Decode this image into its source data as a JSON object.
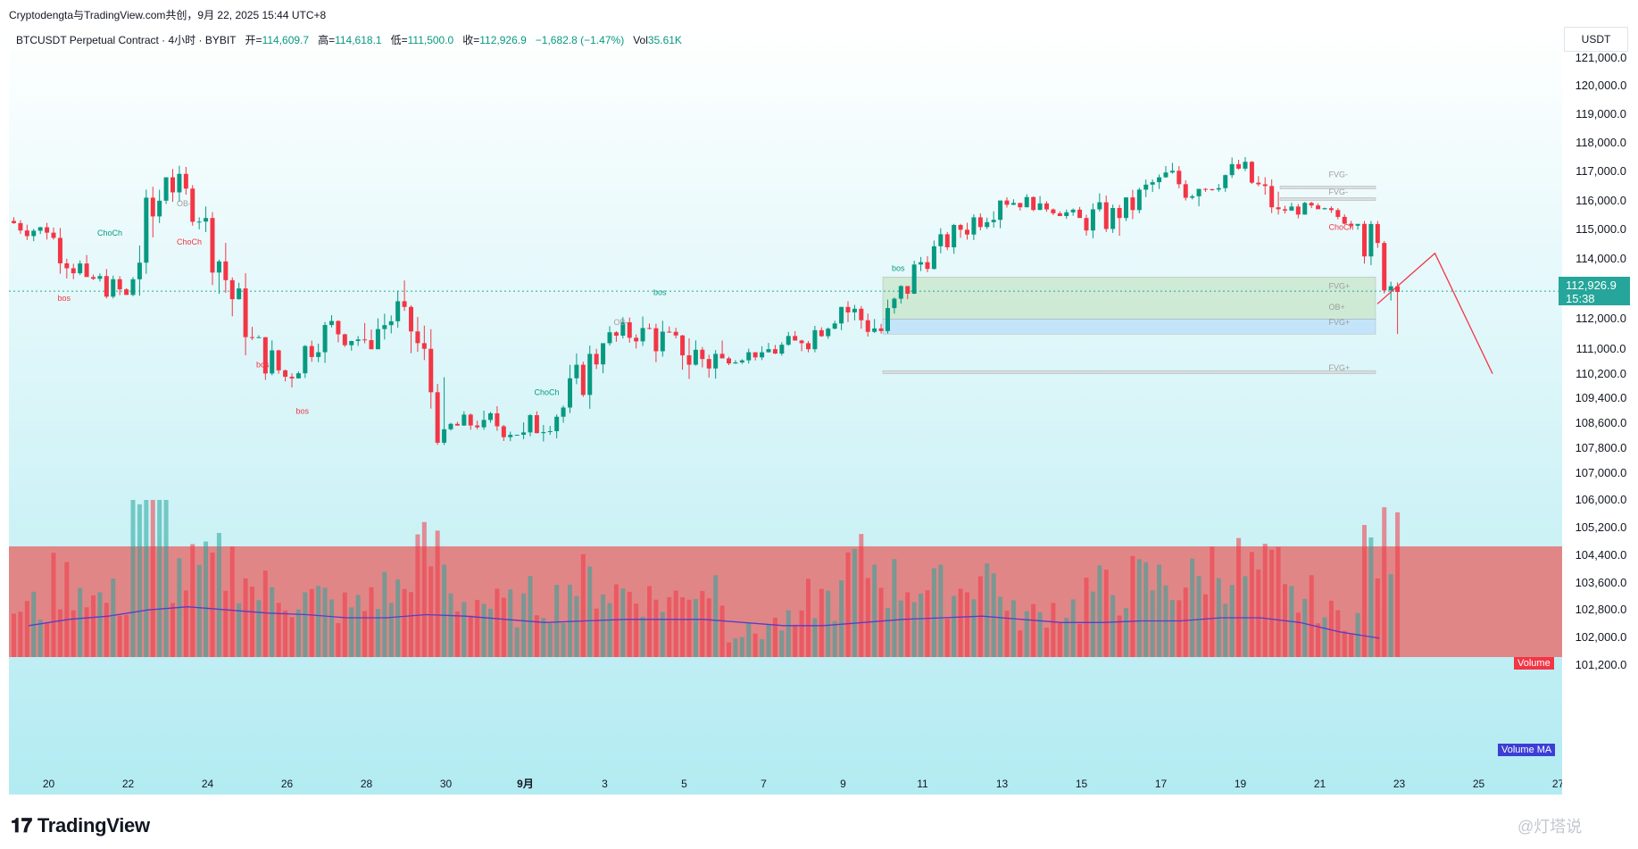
{
  "header": {
    "attribution": "Cryptodengta与TradingView.com共创，9月 22, 2025 15:44 UTC+8"
  },
  "legend": {
    "symbol": "BTCUSDT Perpetual Contract · 4小时 · BYBIT",
    "open_label": "开=",
    "open": "114,609.7",
    "high_label": "高=",
    "high": "114,618.1",
    "low_label": "低=",
    "low": "111,500.0",
    "close_label": "收=",
    "close": "112,926.9",
    "change": "−1,682.8 (−1.47%)",
    "vol_label": "Vol",
    "vol": "35.61K"
  },
  "price_axis": {
    "currency": "USDT",
    "labels": [
      "121,000.0",
      "120,000.0",
      "119,000.0",
      "118,000.0",
      "117,000.0",
      "116,000.0",
      "115,000.0",
      "114,000.0",
      "112,000.0",
      "111,000.0",
      "110,200.0",
      "109,400.0",
      "108,600.0",
      "107,800.0",
      "107,000.0",
      "106,000.0",
      "105,200.0",
      "104,400.0",
      "103,600.0",
      "102,800.0",
      "102,000.0",
      "101,200.0"
    ],
    "last_price": "112,926.9",
    "countdown": "15:38"
  },
  "time_axis": {
    "labels": [
      "20",
      "22",
      "24",
      "26",
      "28",
      "30",
      "9月",
      "3",
      "5",
      "7",
      "9",
      "11",
      "13",
      "15",
      "17",
      "19",
      "21",
      "23",
      "25",
      "27"
    ]
  },
  "indicators": {
    "volume_tag": "Volume",
    "volume_ma_tag": "Volume MA"
  },
  "annotations": {
    "choch_1": "ChoCh",
    "bos_1": "bos",
    "choch_2": "ChoCh",
    "bos_2": "bos",
    "bos_3": "bos",
    "choch_3": "ChoCh",
    "bos_4": "bos",
    "bos_5": "bos",
    "choch_4": "ChoCh",
    "ob_1": "OB-",
    "ob_2": "OB-",
    "ob_3": "OB+",
    "fvg_1": "FVG-",
    "fvg_2": "FVG-",
    "fvg_3": "FVG+",
    "fvg_4": "FVG+",
    "fvg_5": "FVG+"
  },
  "colors": {
    "up": "#089981",
    "down": "#f23645",
    "bg_top": "#ffffff",
    "bg_bottom": "#b2ebf2",
    "volume_zone": "#e57373",
    "ma_line": "#5b3cc4",
    "ob_green": "#c8e6c9",
    "ob_blue": "#bbdefb",
    "ob_gray": "#d6d6d6"
  },
  "branding": {
    "logo": "TradingView",
    "watermark": "@灯塔说"
  },
  "chart_data": {
    "type": "candlestick",
    "symbol": "BTCUSDT Perpetual Contract",
    "interval": "4h",
    "y_range": [
      101000,
      121400
    ],
    "scale": "log",
    "x_range": [
      "2025-08-19",
      "2025-09-27"
    ],
    "current_price": 112926.9,
    "key_levels": [
      {
        "label": "OB+",
        "top": 113400,
        "bottom": 112000
      },
      {
        "label": "FVG+",
        "top": 112000,
        "bottom": 111500
      },
      {
        "label": "FVG+",
        "top": 110300,
        "bottom": 110200
      },
      {
        "label": "FVG-",
        "top": 116500,
        "bottom": 116400
      },
      {
        "label": "FVG-",
        "top": 116100,
        "bottom": 116000
      }
    ],
    "projection": [
      {
        "date": "2025-09-22",
        "price": 112500
      },
      {
        "date": "2025-09-23",
        "price": 114200
      },
      {
        "date": "2025-09-24",
        "price": 110200
      }
    ],
    "candles_daily_approx": [
      {
        "date": "2025-08-19",
        "o": 115300,
        "h": 115800,
        "l": 114300,
        "c": 114900
      },
      {
        "date": "2025-08-20",
        "o": 114900,
        "h": 115200,
        "l": 112800,
        "c": 113400
      },
      {
        "date": "2025-08-21",
        "o": 113400,
        "h": 114100,
        "l": 112400,
        "c": 112800
      },
      {
        "date": "2025-08-22",
        "o": 112800,
        "h": 117400,
        "l": 111700,
        "c": 116800
      },
      {
        "date": "2025-08-23",
        "o": 116800,
        "h": 117200,
        "l": 114700,
        "c": 115400
      },
      {
        "date": "2025-08-24",
        "o": 115400,
        "h": 115600,
        "l": 110800,
        "c": 111400
      },
      {
        "date": "2025-08-25",
        "o": 111400,
        "h": 111900,
        "l": 109300,
        "c": 110100
      },
      {
        "date": "2025-08-26",
        "o": 110100,
        "h": 111900,
        "l": 109400,
        "c": 111800
      },
      {
        "date": "2025-08-27",
        "o": 111800,
        "h": 112700,
        "l": 110700,
        "c": 111300
      },
      {
        "date": "2025-08-28",
        "o": 111300,
        "h": 113600,
        "l": 111000,
        "c": 112400
      },
      {
        "date": "2025-08-29",
        "o": 112400,
        "h": 112800,
        "l": 107900,
        "c": 108400
      },
      {
        "date": "2025-08-30",
        "o": 108400,
        "h": 109000,
        "l": 107600,
        "c": 108700
      },
      {
        "date": "2025-08-31",
        "o": 108700,
        "h": 109600,
        "l": 107900,
        "c": 108300
      },
      {
        "date": "2025-09-01",
        "o": 108300,
        "h": 109400,
        "l": 107300,
        "c": 109100
      },
      {
        "date": "2025-09-02",
        "o": 109100,
        "h": 111700,
        "l": 108600,
        "c": 111200
      },
      {
        "date": "2025-09-03",
        "o": 111200,
        "h": 112400,
        "l": 110500,
        "c": 111700
      },
      {
        "date": "2025-09-04",
        "o": 111700,
        "h": 112000,
        "l": 109400,
        "c": 110800
      },
      {
        "date": "2025-09-05",
        "o": 110800,
        "h": 113300,
        "l": 109500,
        "c": 110700
      },
      {
        "date": "2025-09-06",
        "o": 110700,
        "h": 111100,
        "l": 110300,
        "c": 110900
      },
      {
        "date": "2025-09-07",
        "o": 110900,
        "h": 111600,
        "l": 110100,
        "c": 111200
      },
      {
        "date": "2025-09-08",
        "o": 111200,
        "h": 112700,
        "l": 110900,
        "c": 112400
      },
      {
        "date": "2025-09-09",
        "o": 112400,
        "h": 113200,
        "l": 110800,
        "c": 111600
      },
      {
        "date": "2025-09-10",
        "o": 111600,
        "h": 114100,
        "l": 111400,
        "c": 113900
      },
      {
        "date": "2025-09-11",
        "o": 113900,
        "h": 115200,
        "l": 113500,
        "c": 115000
      },
      {
        "date": "2025-09-12",
        "o": 115000,
        "h": 116600,
        "l": 114600,
        "c": 116000
      },
      {
        "date": "2025-09-13",
        "o": 116000,
        "h": 116300,
        "l": 115300,
        "c": 115900
      },
      {
        "date": "2025-09-14",
        "o": 115900,
        "h": 116100,
        "l": 115200,
        "c": 115400
      },
      {
        "date": "2025-09-15",
        "o": 115400,
        "h": 116700,
        "l": 114400,
        "c": 115400
      },
      {
        "date": "2025-09-16",
        "o": 115400,
        "h": 116900,
        "l": 114800,
        "c": 116800
      },
      {
        "date": "2025-09-17",
        "o": 116800,
        "h": 117300,
        "l": 114800,
        "c": 116400
      },
      {
        "date": "2025-09-18",
        "o": 116400,
        "h": 117900,
        "l": 116300,
        "c": 117100
      },
      {
        "date": "2025-09-19",
        "o": 117100,
        "h": 117500,
        "l": 115200,
        "c": 115700
      },
      {
        "date": "2025-09-20",
        "o": 115700,
        "h": 116200,
        "l": 115300,
        "c": 115700
      },
      {
        "date": "2025-09-21",
        "o": 115700,
        "h": 115800,
        "l": 115000,
        "c": 115200
      },
      {
        "date": "2025-09-22",
        "o": 115200,
        "h": 115300,
        "l": 111500,
        "c": 112900
      }
    ],
    "volume_relative": [
      0.3,
      0.45,
      0.35,
      1.0,
      0.5,
      0.55,
      0.4,
      0.35,
      0.3,
      0.4,
      0.6,
      0.35,
      0.3,
      0.35,
      0.45,
      0.4,
      0.35,
      0.45,
      0.15,
      0.2,
      0.35,
      0.55,
      0.45,
      0.4,
      0.5,
      0.25,
      0.3,
      0.4,
      0.45,
      0.45,
      0.55,
      0.5,
      0.35,
      0.25,
      0.65
    ],
    "volume_ma_relative": [
      0.2,
      0.24,
      0.26,
      0.3,
      0.32,
      0.3,
      0.28,
      0.27,
      0.25,
      0.25,
      0.27,
      0.26,
      0.24,
      0.22,
      0.23,
      0.24,
      0.24,
      0.24,
      0.22,
      0.2,
      0.2,
      0.22,
      0.24,
      0.25,
      0.26,
      0.24,
      0.22,
      0.22,
      0.23,
      0.23,
      0.25,
      0.25,
      0.22,
      0.16,
      0.12
    ]
  }
}
